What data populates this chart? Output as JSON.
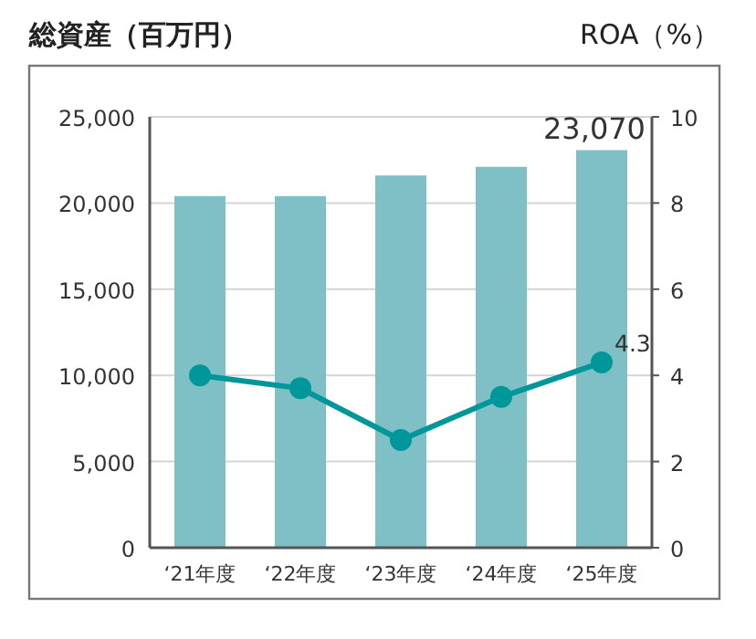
{
  "chart_data": {
    "type": "bar",
    "ylabel": "総資産（百万円）",
    "y2label": "ROA（%）",
    "categories": [
      "‘21年度",
      "‘22年度",
      "‘23年度",
      "‘24年度",
      "‘25年度"
    ],
    "series": [
      {
        "color": "#7fc0c6",
        "values": [
          20400,
          20400,
          21600,
          22100,
          23070
        ],
        "value_labels": [
          null,
          null,
          null,
          null,
          "23,070"
        ]
      },
      {
        "type": "line",
        "axis": "y2",
        "color": "#00979a",
        "values": [
          4.0,
          3.7,
          2.5,
          3.5,
          4.3
        ],
        "value_labels": [
          null,
          null,
          null,
          null,
          "4.3"
        ]
      }
    ],
    "ylim": [
      0,
      25000
    ],
    "yticks": [
      {
        "value": 0,
        "label": "0"
      },
      {
        "value": 5000,
        "label": "5,000"
      },
      {
        "value": 10000,
        "label": "10,000"
      },
      {
        "value": 15000,
        "label": "15,000"
      },
      {
        "value": 20000,
        "label": "20,000"
      },
      {
        "value": 25000,
        "label": "25,000"
      }
    ],
    "y2lim": [
      0,
      10
    ],
    "y2ticks": [
      0,
      2,
      4,
      6,
      8,
      10
    ],
    "grid": "y",
    "marker": "circle"
  }
}
